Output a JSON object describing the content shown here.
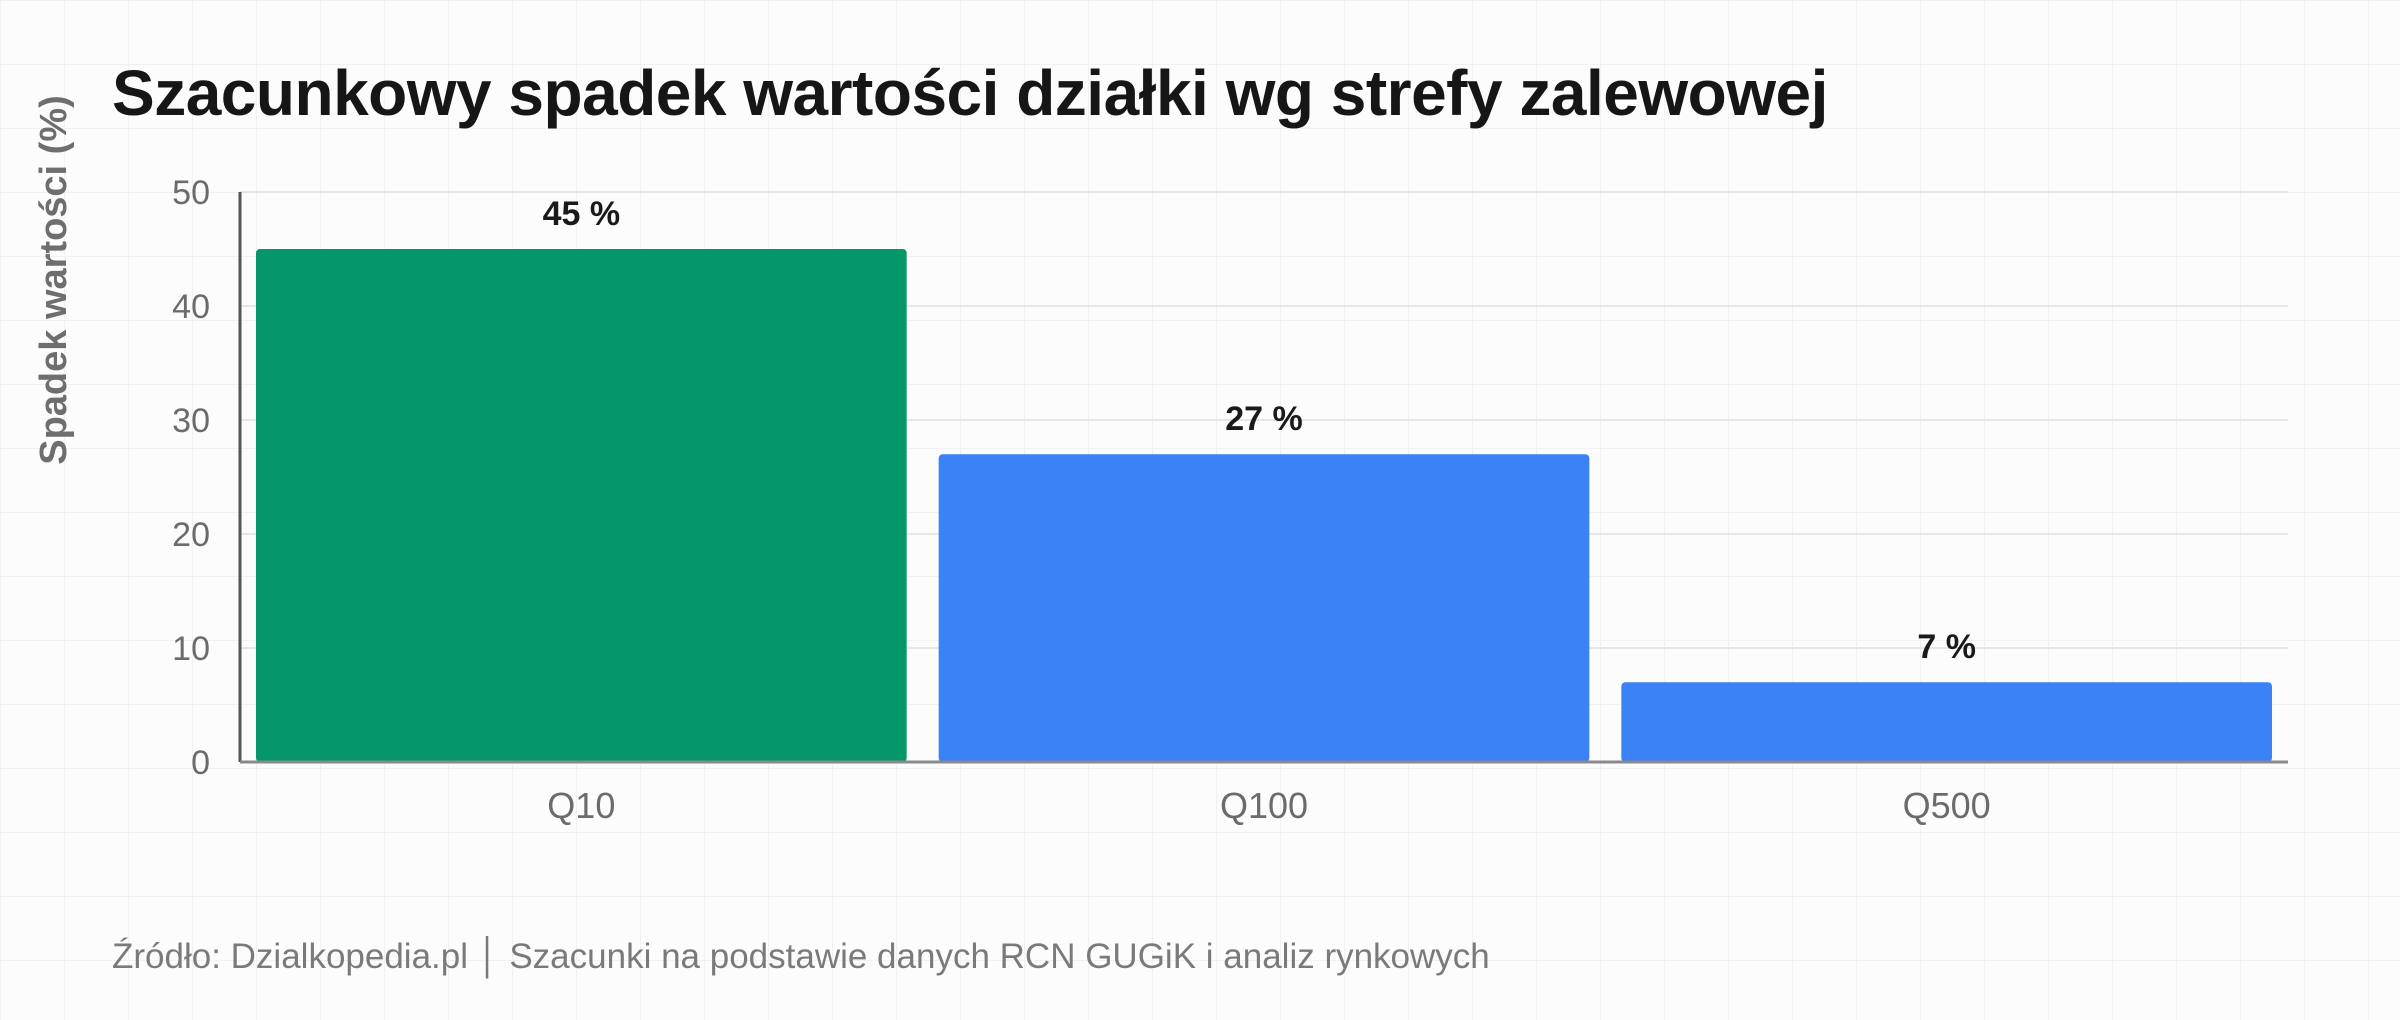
{
  "chart_data": {
    "type": "bar",
    "title": "Szacunkowy spadek wartości działki wg strefy zalewowej",
    "ylabel": "Spadek wartości (%)",
    "xlabel": "",
    "categories": [
      "Q10",
      "Q100",
      "Q500"
    ],
    "values": [
      45,
      27,
      7
    ],
    "data_labels": [
      "45 %",
      "27 %",
      "7 %"
    ],
    "bar_colors": [
      "#059669",
      "#3b82f6",
      "#3b82f6"
    ],
    "ylim": [
      0,
      50
    ],
    "yticks": [
      0,
      10,
      20,
      30,
      40,
      50
    ],
    "grid": true,
    "legend": "none"
  },
  "source_note": "Źródło: Dzialkopedia.pl │ Szacunki na podstawie danych RCN GUGiK i analiz rynkowych"
}
